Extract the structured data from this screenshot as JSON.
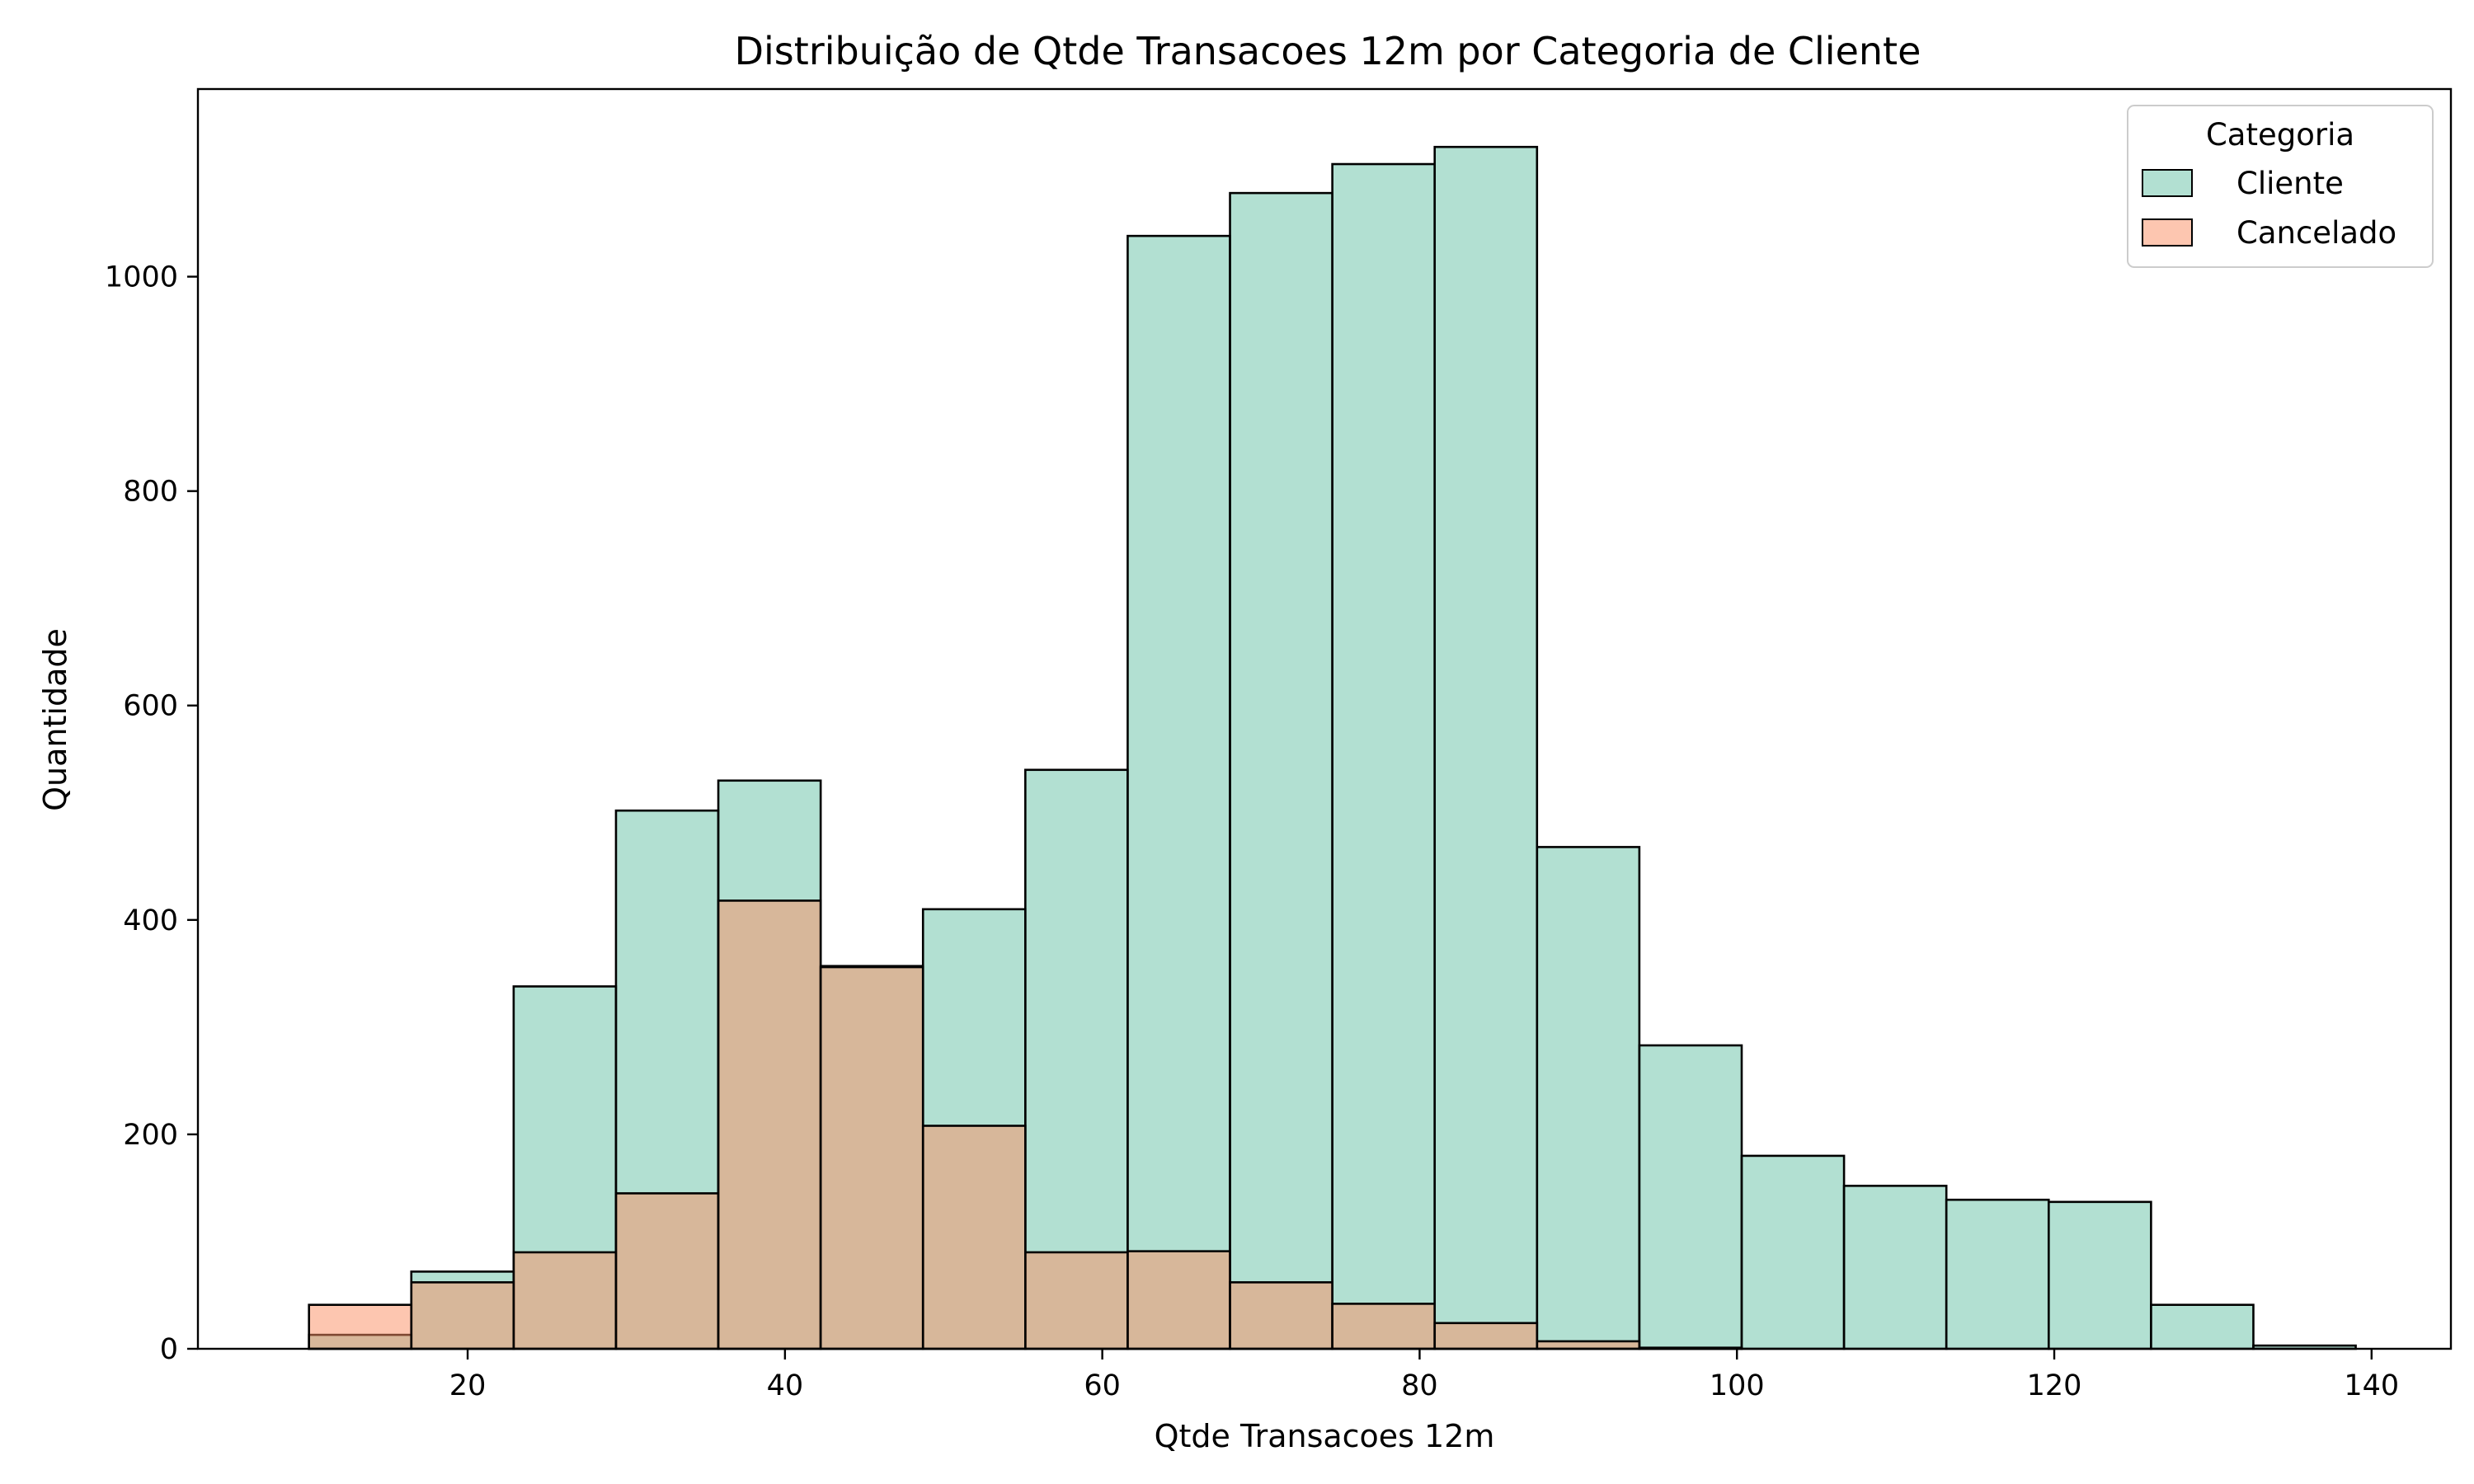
{
  "chart_data": {
    "type": "histogram",
    "title": "Distribuição de Qtde Transacoes 12m por Categoria de Cliente",
    "xlabel": "Qtde Transacoes 12m",
    "ylabel": "Quantidade",
    "xlim": [
      3,
      145
    ],
    "ylim": [
      0,
      1175
    ],
    "xticks": [
      20,
      40,
      60,
      80,
      100,
      120,
      140
    ],
    "yticks": [
      0,
      200,
      400,
      600,
      800,
      1000
    ],
    "bin_start": 10,
    "bin_width": 6.45,
    "legend": {
      "title": "Categoria",
      "position": "top-right"
    },
    "series": [
      {
        "name": "Cliente",
        "color": "#66c2a5",
        "values": [
          13,
          72,
          338,
          502,
          530,
          357,
          410,
          540,
          1038,
          1078,
          1105,
          1121,
          468,
          283,
          180,
          152,
          139,
          137,
          41,
          3
        ]
      },
      {
        "name": "Cancelado",
        "color": "#fc8d62",
        "values": [
          41,
          62,
          90,
          145,
          418,
          356,
          208,
          90,
          91,
          62,
          42,
          24,
          7,
          1,
          0,
          0,
          0,
          0,
          0,
          0
        ]
      }
    ]
  }
}
